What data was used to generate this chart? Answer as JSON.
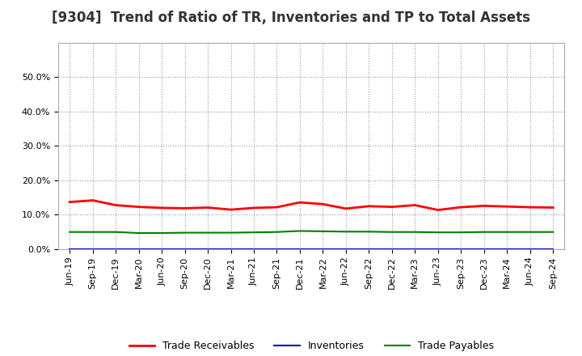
{
  "title": "[9304]  Trend of Ratio of TR, Inventories and TP to Total Assets",
  "x_labels": [
    "Jun-19",
    "Sep-19",
    "Dec-19",
    "Mar-20",
    "Jun-20",
    "Sep-20",
    "Dec-20",
    "Mar-21",
    "Jun-21",
    "Sep-21",
    "Dec-21",
    "Mar-22",
    "Jun-22",
    "Sep-22",
    "Dec-22",
    "Mar-23",
    "Jun-23",
    "Sep-23",
    "Dec-23",
    "Mar-24",
    "Jun-24",
    "Sep-24"
  ],
  "trade_receivables": [
    0.137,
    0.142,
    0.128,
    0.123,
    0.12,
    0.119,
    0.121,
    0.115,
    0.12,
    0.122,
    0.136,
    0.131,
    0.118,
    0.125,
    0.123,
    0.128,
    0.114,
    0.122,
    0.126,
    0.124,
    0.122,
    0.121
  ],
  "inventories": [
    0.001,
    0.001,
    0.001,
    0.001,
    0.001,
    0.001,
    0.001,
    0.001,
    0.001,
    0.001,
    0.001,
    0.001,
    0.001,
    0.001,
    0.001,
    0.001,
    0.001,
    0.001,
    0.001,
    0.001,
    0.001,
    0.001
  ],
  "trade_payables": [
    0.05,
    0.05,
    0.05,
    0.047,
    0.047,
    0.048,
    0.048,
    0.048,
    0.049,
    0.05,
    0.053,
    0.052,
    0.051,
    0.051,
    0.05,
    0.05,
    0.049,
    0.049,
    0.05,
    0.05,
    0.05,
    0.05
  ],
  "tr_color": "#ff0000",
  "inv_color": "#0000cc",
  "tp_color": "#008000",
  "tr_label": "Trade Receivables",
  "inv_label": "Inventories",
  "tp_label": "Trade Payables",
  "ylim": [
    0.0,
    0.6
  ],
  "yticks": [
    0.0,
    0.1,
    0.2,
    0.3,
    0.4,
    0.5
  ],
  "background_color": "#ffffff",
  "grid_color": "#999999",
  "title_fontsize": 12,
  "title_color": "#333333",
  "legend_fontsize": 9,
  "axis_fontsize": 8
}
